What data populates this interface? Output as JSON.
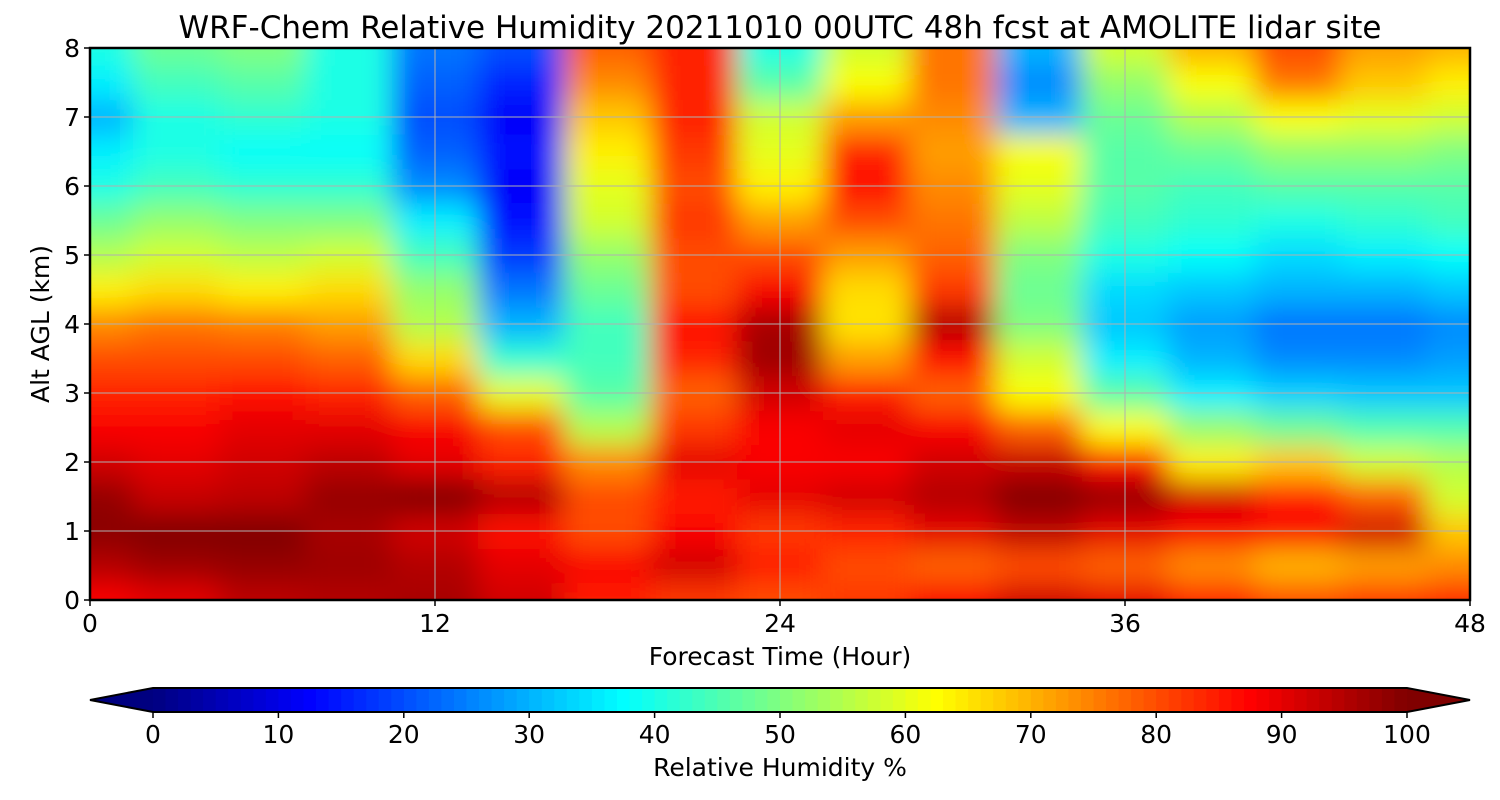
{
  "chart_data": {
    "type": "heatmap",
    "title": "WRF-Chem Relative Humidity 20211010 00UTC 48h fcst at AMOLITE lidar site",
    "xlabel": "Forecast Time (Hour)",
    "ylabel": "Alt AGL (km)",
    "xlim": [
      0,
      48
    ],
    "ylim": [
      0,
      8
    ],
    "xticks": [
      0,
      12,
      24,
      36,
      48
    ],
    "yticks": [
      0,
      1,
      2,
      3,
      4,
      5,
      6,
      7,
      8
    ],
    "grid": true,
    "colormap": "jet",
    "colorbar": {
      "label": "Relative Humidity %",
      "range": [
        0,
        100
      ],
      "ticks": [
        0,
        10,
        20,
        30,
        40,
        50,
        60,
        70,
        80,
        90,
        100
      ],
      "extend": "both",
      "orientation": "horizontal"
    },
    "x": [
      0,
      3,
      6,
      9,
      12,
      15,
      18,
      21,
      24,
      27,
      30,
      33,
      36,
      39,
      42,
      45,
      48
    ],
    "y": [
      0,
      0.5,
      1,
      1.5,
      2,
      2.5,
      3,
      3.5,
      4,
      4.5,
      5,
      5.5,
      6,
      6.5,
      7,
      7.5,
      8
    ],
    "z": [
      [
        88,
        90,
        94,
        95,
        96,
        92,
        85,
        82,
        80,
        82,
        88,
        92,
        90,
        84,
        80,
        82,
        84
      ],
      [
        95,
        97,
        98,
        97,
        95,
        90,
        88,
        92,
        85,
        80,
        78,
        80,
        78,
        74,
        70,
        72,
        74
      ],
      [
        99,
        100,
        100,
        96,
        92,
        86,
        80,
        88,
        82,
        84,
        90,
        94,
        90,
        88,
        88,
        92,
        68
      ],
      [
        98,
        93,
        94,
        98,
        100,
        95,
        80,
        85,
        90,
        92,
        95,
        100,
        98,
        92,
        85,
        78,
        58
      ],
      [
        92,
        90,
        92,
        94,
        90,
        84,
        74,
        90,
        88,
        88,
        92,
        93,
        86,
        64,
        68,
        58,
        55
      ],
      [
        88,
        88,
        90,
        90,
        88,
        80,
        55,
        82,
        88,
        90,
        88,
        78,
        62,
        52,
        48,
        45,
        45
      ],
      [
        84,
        84,
        86,
        84,
        78,
        60,
        46,
        78,
        92,
        85,
        78,
        62,
        46,
        36,
        33,
        32,
        32
      ],
      [
        80,
        80,
        80,
        78,
        66,
        42,
        44,
        84,
        97,
        72,
        86,
        58,
        36,
        30,
        26,
        26,
        28
      ],
      [
        74,
        76,
        75,
        72,
        55,
        30,
        44,
        86,
        96,
        65,
        95,
        50,
        32,
        28,
        24,
        24,
        26
      ],
      [
        64,
        66,
        64,
        66,
        52,
        24,
        48,
        80,
        88,
        66,
        82,
        48,
        34,
        32,
        30,
        30,
        32
      ],
      [
        55,
        58,
        56,
        58,
        44,
        18,
        52,
        80,
        80,
        72,
        78,
        50,
        40,
        38,
        34,
        36,
        38
      ],
      [
        48,
        52,
        50,
        50,
        36,
        14,
        58,
        82,
        72,
        80,
        76,
        56,
        44,
        42,
        40,
        42,
        44
      ],
      [
        40,
        44,
        42,
        42,
        26,
        12,
        60,
        80,
        64,
        86,
        74,
        60,
        46,
        44,
        46,
        46,
        46
      ],
      [
        36,
        40,
        38,
        38,
        22,
        14,
        64,
        82,
        60,
        84,
        72,
        62,
        46,
        48,
        52,
        52,
        50
      ],
      [
        30,
        40,
        42,
        40,
        20,
        12,
        68,
        84,
        58,
        72,
        74,
        30,
        48,
        55,
        62,
        60,
        58
      ],
      [
        36,
        44,
        46,
        40,
        22,
        16,
        74,
        84,
        46,
        62,
        76,
        26,
        52,
        62,
        76,
        68,
        64
      ],
      [
        40,
        48,
        50,
        40,
        24,
        20,
        78,
        84,
        40,
        58,
        76,
        30,
        58,
        70,
        80,
        72,
        70
      ]
    ]
  }
}
